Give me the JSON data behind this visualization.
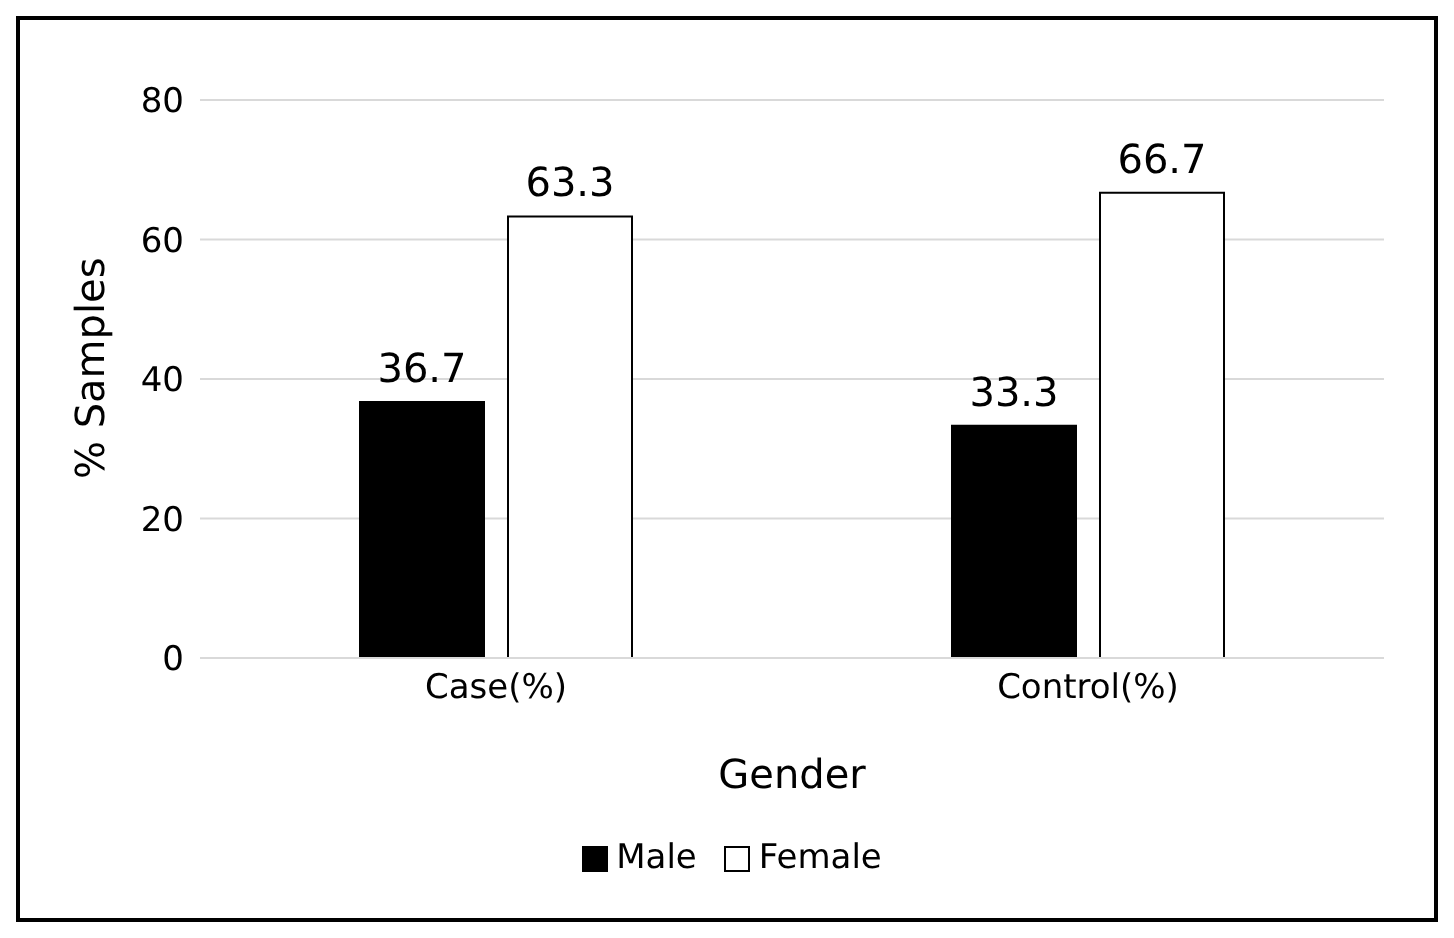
{
  "chart_data": {
    "type": "bar",
    "xlabel": "Gender",
    "ylabel": "% Samples",
    "categories": [
      "Case(%)",
      "Control(%)"
    ],
    "series": [
      {
        "name": "Male",
        "color": "#000000",
        "values": [
          36.7,
          33.3
        ]
      },
      {
        "name": "Female",
        "color": "#ffffff",
        "values": [
          63.3,
          66.7
        ]
      }
    ],
    "ylim": [
      0,
      80
    ],
    "yticks": [
      0,
      20,
      40,
      60,
      80
    ],
    "grid": "y",
    "legend": "bottom",
    "data_labels": true
  }
}
